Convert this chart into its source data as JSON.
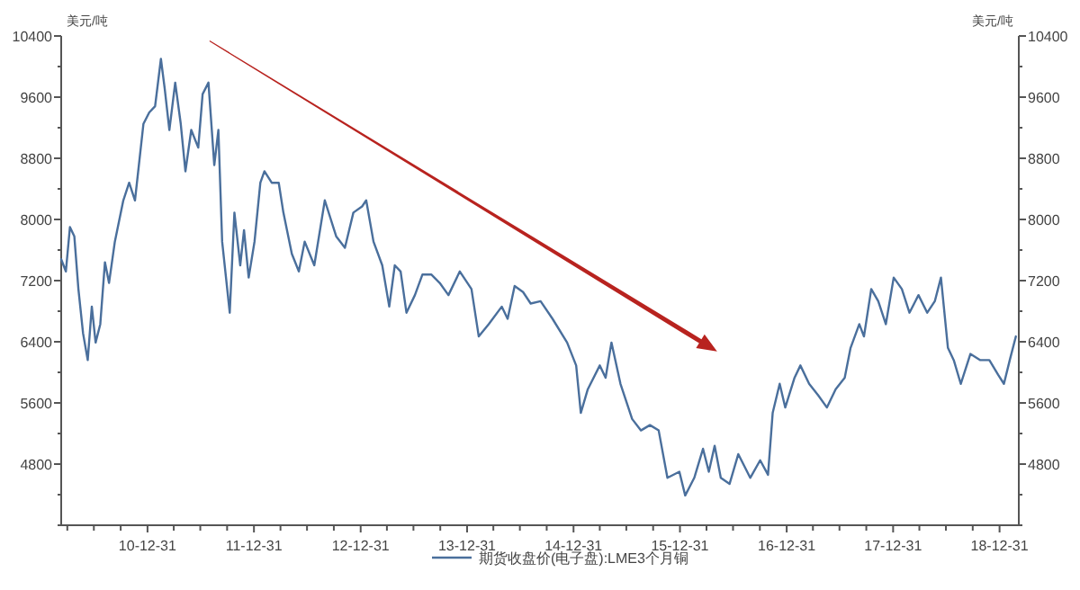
{
  "chart_data": {
    "type": "line",
    "ylabel": "美元/吨",
    "y2label": "美元/吨",
    "legend": "bottom",
    "x": [
      "2010-03-10",
      "2010-03-26",
      "2010-04-09",
      "2010-04-24",
      "2010-05-08",
      "2010-05-24",
      "2010-06-09",
      "2010-06-23",
      "2010-07-06",
      "2010-07-22",
      "2010-08-07",
      "2010-08-21",
      "2010-09-10",
      "2010-10-09",
      "2010-10-29",
      "2010-11-18",
      "2010-12-17",
      "2011-01-06",
      "2011-01-26",
      "2011-02-15",
      "2011-02-28",
      "2011-03-16",
      "2011-04-05",
      "2011-04-24",
      "2011-05-10",
      "2011-05-30",
      "2011-06-23",
      "2011-07-08",
      "2011-07-28",
      "2011-08-17",
      "2011-08-31",
      "2011-09-13",
      "2011-10-09",
      "2011-10-25",
      "2011-11-14",
      "2011-11-27",
      "2011-12-13",
      "2012-01-02",
      "2012-01-22",
      "2012-02-05",
      "2012-03-01",
      "2012-03-25",
      "2012-04-10",
      "2012-05-09",
      "2012-06-02",
      "2012-06-22",
      "2012-07-25",
      "2012-08-30",
      "2012-10-08",
      "2012-11-07",
      "2012-12-06",
      "2013-01-05",
      "2013-01-19",
      "2013-02-13",
      "2013-03-15",
      "2013-04-08",
      "2013-04-27",
      "2013-05-17",
      "2013-06-06",
      "2013-07-05",
      "2013-07-31",
      "2013-08-30",
      "2013-09-28",
      "2013-10-28",
      "2013-12-06",
      "2014-01-15",
      "2014-02-09",
      "2014-03-15",
      "2014-04-29",
      "2014-05-19",
      "2014-06-12",
      "2014-07-11",
      "2014-08-06",
      "2014-09-09",
      "2014-10-20",
      "2014-12-09",
      "2015-01-09",
      "2015-01-25",
      "2015-02-18",
      "2015-03-31",
      "2015-04-20",
      "2015-05-10",
      "2015-06-10",
      "2015-07-20",
      "2015-08-19",
      "2015-09-19",
      "2015-10-19",
      "2015-11-18",
      "2015-12-29",
      "2016-01-18",
      "2016-02-18",
      "2016-03-19",
      "2016-04-08",
      "2016-04-28",
      "2016-05-19",
      "2016-06-18",
      "2016-07-18",
      "2016-08-28",
      "2016-10-01",
      "2016-10-28",
      "2016-11-13",
      "2016-12-07",
      "2016-12-26",
      "2017-01-27",
      "2017-02-16",
      "2017-03-18",
      "2017-04-18",
      "2017-05-18",
      "2017-06-17",
      "2017-07-18",
      "2017-08-07",
      "2017-09-06",
      "2017-09-22",
      "2017-10-17",
      "2017-11-10",
      "2017-12-06",
      "2018-01-02",
      "2018-01-30",
      "2018-02-25",
      "2018-03-28",
      "2018-04-27",
      "2018-05-23",
      "2018-06-13",
      "2018-07-07",
      "2018-07-27",
      "2018-08-20",
      "2018-09-22",
      "2018-10-26",
      "2018-11-26",
      "2018-12-26",
      "2019-01-15",
      "2019-02-04",
      "2019-02-25"
    ],
    "series": [
      {
        "name": "期货收盘价(电子盘):LME3个月铜",
        "color": "#4a6f9c",
        "values": [
          7480,
          7320,
          7900,
          7780,
          7090,
          6510,
          6160,
          6860,
          6390,
          6630,
          7440,
          7170,
          7710,
          8250,
          8480,
          8250,
          9250,
          9400,
          9480,
          10100,
          9710,
          9170,
          9790,
          9250,
          8630,
          9170,
          8940,
          9640,
          9790,
          8710,
          9170,
          7710,
          6780,
          8090,
          7400,
          7860,
          7240,
          7710,
          8480,
          8630,
          8480,
          8480,
          8090,
          7550,
          7320,
          7710,
          7400,
          8250,
          7780,
          7630,
          8090,
          8170,
          8250,
          7710,
          7400,
          6860,
          7400,
          7320,
          6780,
          7010,
          7280,
          7280,
          7170,
          7010,
          7320,
          7090,
          6470,
          6630,
          6860,
          6700,
          7130,
          7050,
          6900,
          6930,
          6700,
          6390,
          6090,
          5470,
          5780,
          6090,
          5930,
          6390,
          5850,
          5390,
          5240,
          5310,
          5240,
          4620,
          4700,
          4390,
          4620,
          5000,
          4700,
          5040,
          4620,
          4540,
          4930,
          4620,
          4850,
          4660,
          5470,
          5850,
          5540,
          5930,
          6090,
          5850,
          5700,
          5540,
          5780,
          5930,
          6320,
          6630,
          6470,
          7090,
          6930,
          6630,
          7240,
          7090,
          6780,
          7010,
          6780,
          6930,
          7240,
          6320,
          6160,
          5850,
          6240,
          6160,
          6160,
          5970,
          5850,
          6160,
          6470
        ]
      }
    ],
    "xlim": [
      "2010-03-10",
      "2019-03-07"
    ],
    "xticks": [
      {
        "value": "2010-03-31",
        "label": null
      },
      {
        "value": "2010-06-30",
        "label": null
      },
      {
        "value": "2010-09-30",
        "label": null
      },
      {
        "value": "2010-12-31",
        "label": "10-12-31"
      },
      {
        "value": "2011-03-31",
        "label": null
      },
      {
        "value": "2011-06-30",
        "label": null
      },
      {
        "value": "2011-09-30",
        "label": null
      },
      {
        "value": "2011-12-31",
        "label": "11-12-31"
      },
      {
        "value": "2012-03-31",
        "label": null
      },
      {
        "value": "2012-06-30",
        "label": null
      },
      {
        "value": "2012-09-30",
        "label": null
      },
      {
        "value": "2012-12-31",
        "label": "12-12-31"
      },
      {
        "value": "2013-03-31",
        "label": null
      },
      {
        "value": "2013-06-30",
        "label": null
      },
      {
        "value": "2013-09-30",
        "label": null
      },
      {
        "value": "2013-12-31",
        "label": "13-12-31"
      },
      {
        "value": "2014-03-31",
        "label": null
      },
      {
        "value": "2014-06-30",
        "label": null
      },
      {
        "value": "2014-09-30",
        "label": null
      },
      {
        "value": "2014-12-31",
        "label": "14-12-31"
      },
      {
        "value": "2015-03-31",
        "label": null
      },
      {
        "value": "2015-06-30",
        "label": null
      },
      {
        "value": "2015-09-30",
        "label": null
      },
      {
        "value": "2015-12-31",
        "label": "15-12-31"
      },
      {
        "value": "2016-03-31",
        "label": null
      },
      {
        "value": "2016-06-30",
        "label": null
      },
      {
        "value": "2016-09-30",
        "label": null
      },
      {
        "value": "2016-12-31",
        "label": "16-12-31"
      },
      {
        "value": "2017-03-31",
        "label": null
      },
      {
        "value": "2017-06-30",
        "label": null
      },
      {
        "value": "2017-09-30",
        "label": null
      },
      {
        "value": "2017-12-31",
        "label": "17-12-31"
      },
      {
        "value": "2018-03-31",
        "label": null
      },
      {
        "value": "2018-06-30",
        "label": null
      },
      {
        "value": "2018-09-30",
        "label": null
      },
      {
        "value": "2018-12-31",
        "label": "18-12-31"
      }
    ],
    "ylim": [
      4000,
      10400
    ],
    "yticks": [
      {
        "value": 4000,
        "label": null
      },
      {
        "value": 4400,
        "label": null
      },
      4800,
      {
        "value": 5200,
        "label": null
      },
      5600,
      {
        "value": 6000,
        "label": null
      },
      6400,
      {
        "value": 6800,
        "label": null
      },
      7200,
      {
        "value": 7600,
        "label": null
      },
      8000,
      {
        "value": 8400,
        "label": null
      },
      8800,
      {
        "value": 9200,
        "label": null
      },
      9600,
      {
        "value": 10000,
        "label": null
      },
      10400
    ],
    "y2lim": [
      4000,
      10400
    ],
    "y2ticks": [
      {
        "value": 4000,
        "label": null
      },
      {
        "value": 4400,
        "label": null
      },
      4800,
      {
        "value": 5200,
        "label": null
      },
      5600,
      {
        "value": 6000,
        "label": null
      },
      6400,
      {
        "value": 6800,
        "label": null
      },
      7200,
      {
        "value": 7600,
        "label": null
      },
      8000,
      {
        "value": 8400,
        "label": null
      },
      8800,
      {
        "value": 9200,
        "label": null
      },
      9600,
      {
        "value": 10000,
        "label": null
      },
      10400
    ]
  }
}
